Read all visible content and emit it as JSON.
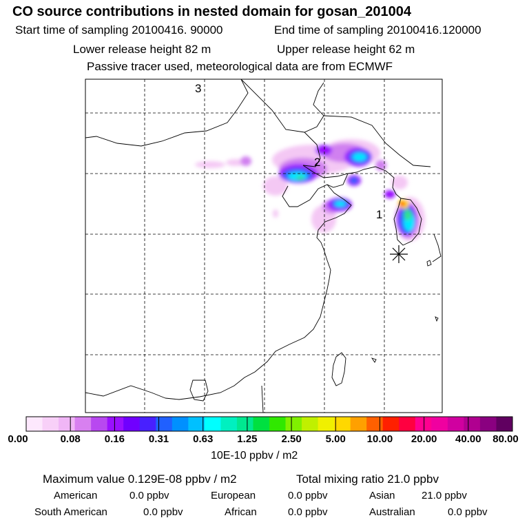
{
  "header": {
    "title": "CO  source contributions in nested domain for gosan_201004",
    "start_time": "Start time of sampling 20100416. 90000",
    "end_time": "End time of sampling 20100416.120000",
    "lower_height": "Lower release height   82 m",
    "upper_height": "Upper release height   62 m",
    "note": "Passive tracer used, meteorological data are from ECMWF"
  },
  "map": {
    "labels": [
      "1",
      "2",
      "3"
    ],
    "receptor_icon": "asterisk-icon"
  },
  "colorbar": {
    "ticks": [
      "0.00",
      "0.08",
      "0.16",
      "0.31",
      "0.63",
      "1.25",
      "2.50",
      "5.00",
      "10.00",
      "20.00",
      "40.00",
      "80.00"
    ],
    "colors": [
      "#fde8fd",
      "#f8d0f8",
      "#f0b6f6",
      "#d880f0",
      "#b848f0",
      "#9a10ff",
      "#7000ff",
      "#4820ff",
      "#2060ff",
      "#0090ff",
      "#00c0ff",
      "#00ffff",
      "#00f0c0",
      "#00e890",
      "#00e040",
      "#30e800",
      "#80f000",
      "#c0f000",
      "#f0f000",
      "#ffd800",
      "#ffa000",
      "#ff6000",
      "#ff2000",
      "#ff0040",
      "#ff0090",
      "#f000a0",
      "#d000a0",
      "#b00090",
      "#8a0080",
      "#600060"
    ],
    "unit": "10E-10 ppbv / m2"
  },
  "summary": {
    "max_value": "Maximum value  0.129E-08 ppbv / m2",
    "total": "Total mixing ratio       21.0 ppbv",
    "sources": [
      {
        "name": "American",
        "value": "0.0 ppbv"
      },
      {
        "name": "European",
        "value": "0.0 ppbv"
      },
      {
        "name": "Asian",
        "value": "21.0 ppbv"
      },
      {
        "name": "South American",
        "value": "0.0 ppbv"
      },
      {
        "name": "African",
        "value": "0.0 ppbv"
      },
      {
        "name": "Australian",
        "value": "0.0 ppbv"
      }
    ]
  }
}
